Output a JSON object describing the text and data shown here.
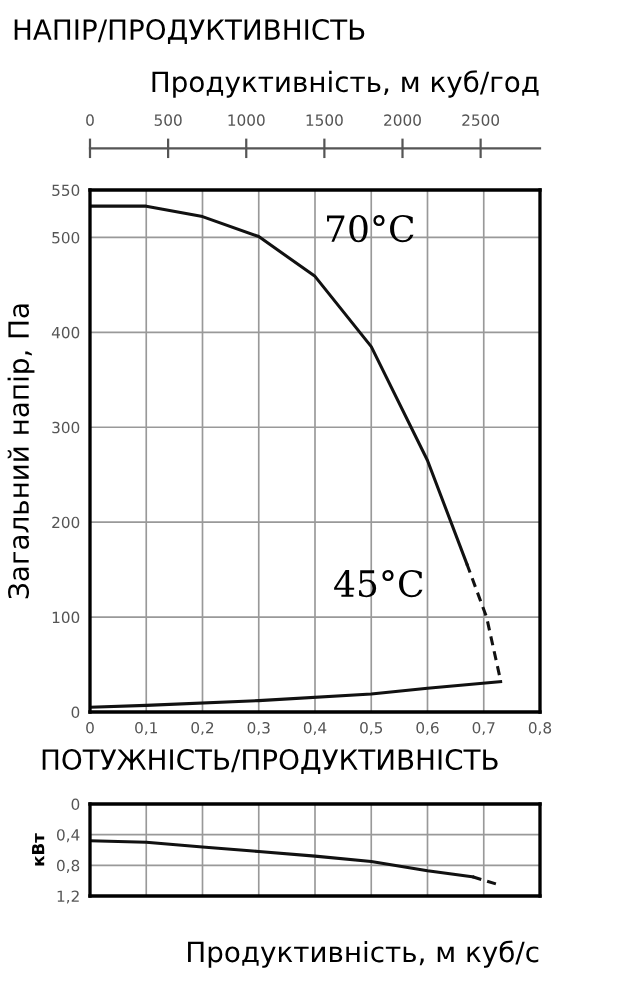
{
  "chart_data": [
    {
      "type": "line",
      "title": "НАПІР/ПРОДУКТИВНІСТЬ",
      "x2label": "Продуктивність, м куб/год",
      "ylabel": "Загальний напір, Па",
      "xlim": [
        0,
        0.8
      ],
      "xticks": [
        0,
        {
          "value": 0.1,
          "label": "0,1"
        },
        {
          "value": 0.2,
          "label": "0,2"
        },
        {
          "value": 0.3,
          "label": "0,3"
        },
        {
          "value": 0.4,
          "label": "0,4"
        },
        {
          "value": 0.5,
          "label": "0,5"
        },
        {
          "value": 0.6,
          "label": "0,6"
        },
        {
          "value": 0.7,
          "label": "0,7"
        },
        {
          "value": 0.8,
          "label": "0,8"
        }
      ],
      "x2lim": [
        0,
        2880
      ],
      "x2ticks": [
        0,
        500,
        1000,
        1500,
        2000,
        2500
      ],
      "ylim": [
        0,
        550
      ],
      "yticks": [
        0,
        100,
        200,
        300,
        400,
        500,
        550
      ],
      "grid": true,
      "series": [
        {
          "color": "#111111",
          "line_style": "solid",
          "x": [
            0,
            0.1,
            0.2,
            0.3,
            0.4,
            0.5,
            0.6,
            0.67
          ],
          "values": [
            533,
            533,
            522,
            501,
            459,
            385,
            265,
            156
          ]
        },
        {
          "color": "#111111",
          "line_style": "dashed",
          "x": [
            0.67,
            0.705,
            0.73
          ],
          "values": [
            156,
            100,
            33
          ]
        },
        {
          "color": "#111111",
          "line_style": "solid",
          "x": [
            0,
            0.1,
            0.3,
            0.5,
            0.6,
            0.73
          ],
          "values": [
            5,
            7,
            12,
            19,
            25,
            32
          ]
        }
      ],
      "annotations": [
        "70°C",
        "45°C"
      ]
    },
    {
      "type": "line",
      "title": "ПОТУЖНІСТЬ/ПРОДУКТИВНІСТЬ",
      "xlabel": "Продуктивність, м куб/с",
      "ylabel": "кВт",
      "xlim": [
        0,
        0.8
      ],
      "xticks": [
        0,
        0.1,
        0.2,
        0.3,
        0.4,
        0.5,
        0.6,
        0.7,
        0.8
      ],
      "ylim": [
        1.2,
        0
      ],
      "yticks": [
        0,
        {
          "value": 0.4,
          "label": "0,4"
        },
        {
          "value": 0.8,
          "label": "0,8"
        },
        {
          "value": 1.2,
          "label": "1,2"
        }
      ],
      "grid": true,
      "tick_labels": "y",
      "series": [
        {
          "color": "#111111",
          "line_style": "solid",
          "x": [
            0,
            0.1,
            0.2,
            0.3,
            0.4,
            0.5,
            0.6,
            0.68
          ],
          "values": [
            0.48,
            0.5,
            0.56,
            0.62,
            0.68,
            0.75,
            0.87,
            0.95
          ]
        },
        {
          "color": "#111111",
          "line_style": "dashed",
          "x": [
            0.68,
            0.73
          ],
          "values": [
            0.95,
            1.06
          ]
        }
      ]
    }
  ]
}
